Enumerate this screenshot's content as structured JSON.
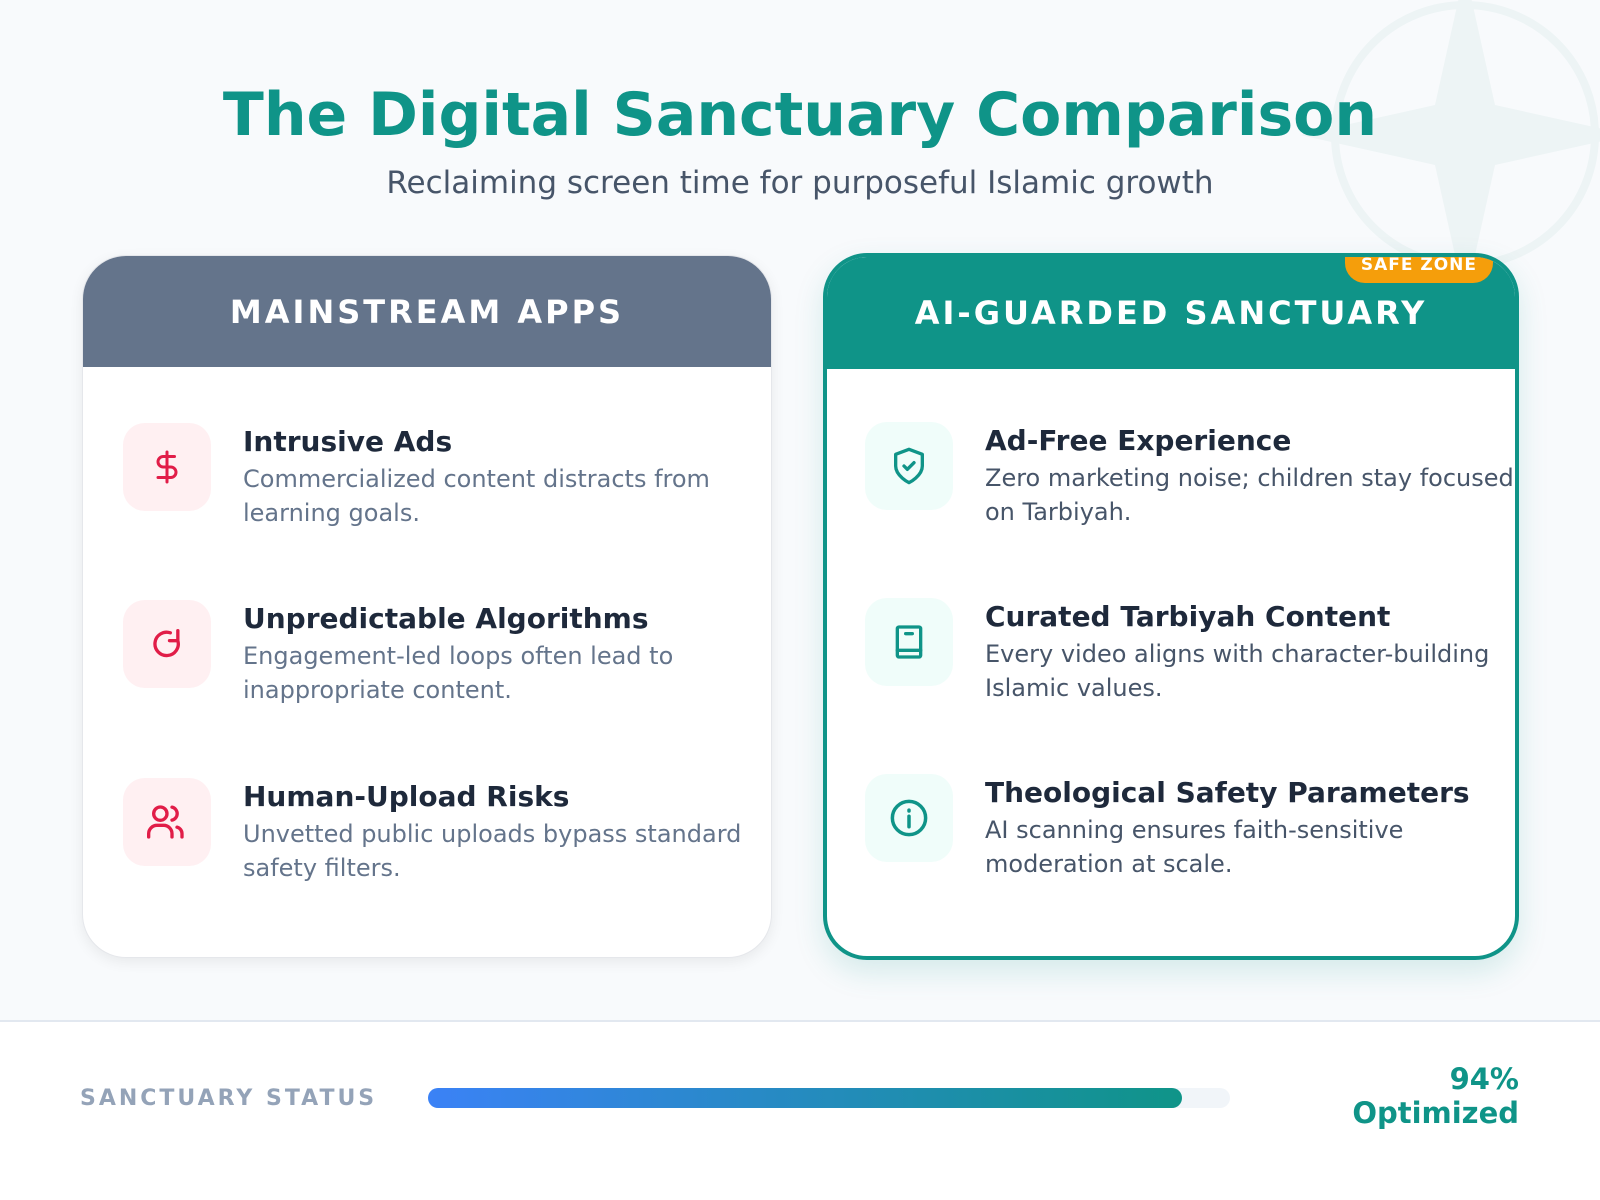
{
  "header": {
    "title": "The Digital Sanctuary Comparison",
    "subtitle": "Reclaiming screen time for purposeful Islamic growth"
  },
  "mainstream": {
    "title": "MAINSTREAM APPS",
    "items": [
      {
        "icon": "dollar-icon",
        "title": "Intrusive Ads",
        "desc": "Commercialized content distracts from learning goals."
      },
      {
        "icon": "refresh-loop-icon",
        "title": "Unpredictable Algorithms",
        "desc": "Engagement-led loops often lead to inappropriate content."
      },
      {
        "icon": "users-icon",
        "title": "Human-Upload Risks",
        "desc": "Unvetted public uploads bypass standard safety filters."
      }
    ]
  },
  "sanctuary": {
    "title": "AI-GUARDED SANCTUARY",
    "badge": "SAFE ZONE",
    "items": [
      {
        "icon": "shield-check-icon",
        "title": "Ad-Free Experience",
        "desc": "Zero marketing noise; children stay focused on Tarbiyah."
      },
      {
        "icon": "book-icon",
        "title": "Curated Tarbiyah Content",
        "desc": "Every video aligns with character-building Islamic values."
      },
      {
        "icon": "info-icon",
        "title": "Theological Safety Parameters",
        "desc": "AI scanning ensures faith-sensitive moderation at scale."
      }
    ]
  },
  "footer": {
    "label": "SANCTUARY STATUS",
    "progress_percent": 94,
    "value_line1": "94%",
    "value_line2": "Optimized"
  },
  "colors": {
    "accent": "#0f9488",
    "mainstream_header": "#64748b",
    "danger": "#e11d48",
    "badge": "#f59e0b",
    "progress_start": "#3b82f6"
  }
}
